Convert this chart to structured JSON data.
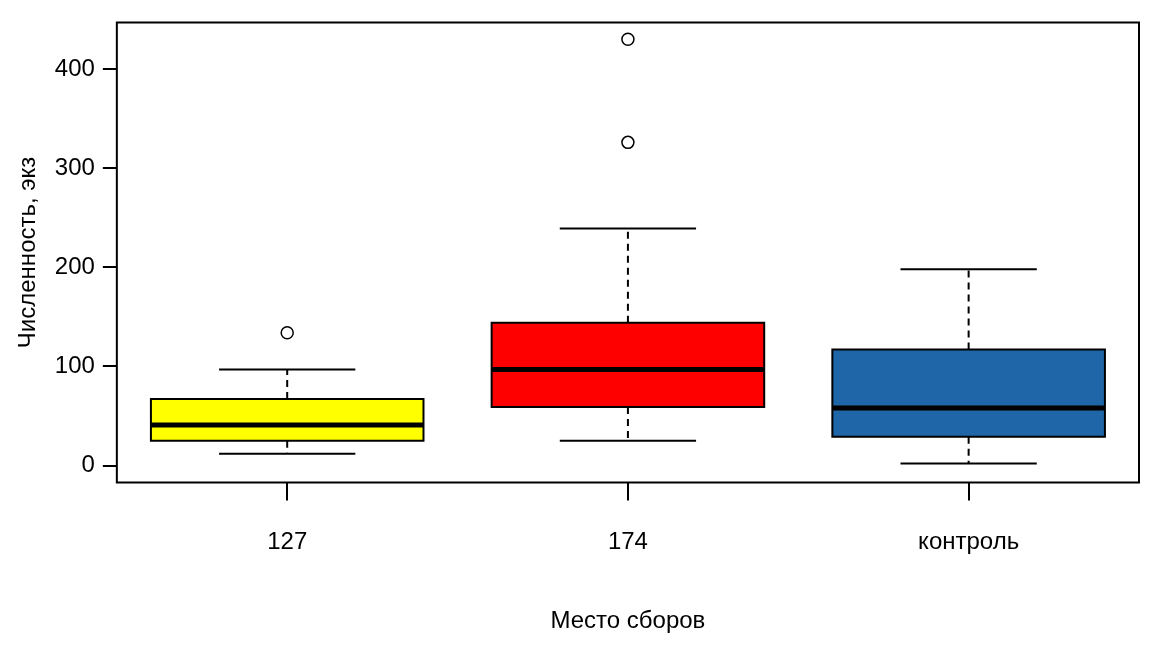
{
  "chart_data": {
    "type": "box",
    "xlabel": "Место сборов",
    "ylabel": "Численность, экз",
    "categories": [
      "127",
      "174",
      "контроль"
    ],
    "colors": [
      "#ffff00",
      "#ff0000",
      "#1f66a8"
    ],
    "boxes": [
      {
        "low": 12,
        "q1": 25,
        "median": 41,
        "q3": 67,
        "high": 97,
        "outliers": [
          134
        ]
      },
      {
        "low": 25,
        "q1": 59,
        "median": 97,
        "q3": 144,
        "high": 239,
        "outliers": [
          326,
          430
        ]
      },
      {
        "low": 2,
        "q1": 29,
        "median": 58,
        "q3": 117,
        "high": 198
      }
    ],
    "ylim": [
      -17,
      447
    ],
    "yticks": [
      0,
      100,
      200,
      300,
      400
    ],
    "grid": false,
    "legend": false
  }
}
